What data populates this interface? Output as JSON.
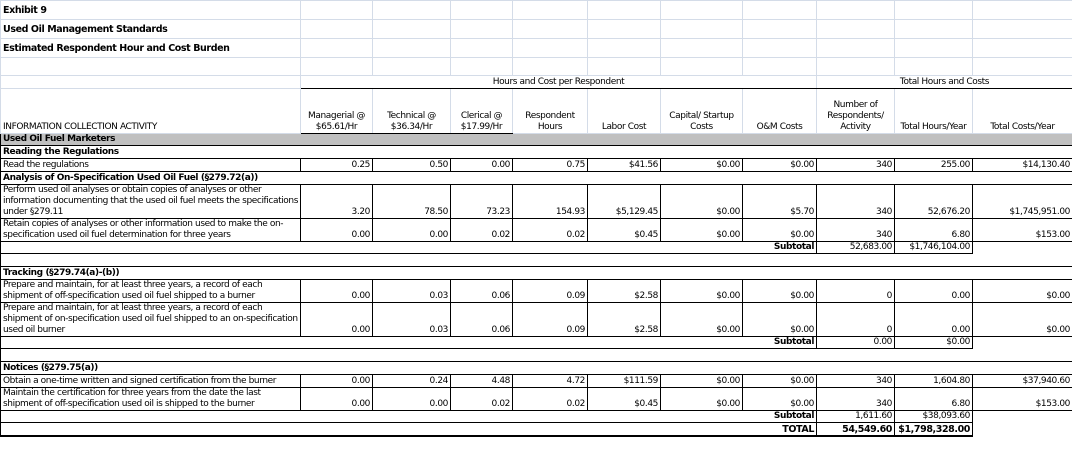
{
  "title_lines": [
    "Exhibit 9",
    "Used Oil Management Standards",
    "Estimated Respondent Hour and Cost Burden"
  ],
  "group_headers": {
    "per_respondent": "Hours and Cost per Respondent",
    "totals": "Total Hours and Costs"
  },
  "columns": [
    "INFORMATION COLLECTION ACTIVITY",
    "Managerial @ $65.61/Hr",
    "Technical @ $36.34/Hr",
    "Clerical @ $17.99/Hr",
    "Respondent Hours",
    "Labor Cost",
    "Capital/ Startup Costs",
    "O&M Costs",
    "Number of Respondents/ Activity",
    "Total Hours/Year",
    "Total Costs/Year"
  ],
  "category": "Used Oil Fuel Marketers",
  "sections": [
    {
      "title": "Reading the Regulations",
      "rows": [
        {
          "activity": "Read the regulations",
          "values": [
            "0.25",
            "0.50",
            "0.00",
            "0.75",
            "$41.56",
            "$0.00",
            "$0.00",
            "340",
            "255.00",
            "$14,130.40"
          ]
        }
      ]
    },
    {
      "title": "Analysis of On-Specification Used Oil Fuel (§279.72(a))",
      "rows": [
        {
          "activity": "Perform used oil analyses or obtain copies of analyses or other information documenting that the used oil fuel meets the specifications under §279.11",
          "values": [
            "3.20",
            "78.50",
            "73.23",
            "154.93",
            "$5,129.45",
            "$0.00",
            "$5.70",
            "340",
            "52,676.20",
            "$1,745,951.00"
          ]
        },
        {
          "activity": "Retain copies of analyses or other information used to make the on-specification used oil fuel determination for three years",
          "values": [
            "0.00",
            "0.00",
            "0.02",
            "0.02",
            "$0.45",
            "$0.00",
            "$0.00",
            "340",
            "6.80",
            "$153.00"
          ]
        }
      ],
      "subtotal": {
        "label": "Subtotal",
        "hours": "52,683.00",
        "costs": "$1,746,104.00"
      }
    },
    {
      "title": "Tracking (§279.74(a)-(b))",
      "rows": [
        {
          "activity": "Prepare and maintain, for at least three years, a record of each shipment of off-specification used oil fuel shipped to a burner",
          "values": [
            "0.00",
            "0.03",
            "0.06",
            "0.09",
            "$2.58",
            "$0.00",
            "$0.00",
            "0",
            "0.00",
            "$0.00"
          ]
        },
        {
          "activity": "Prepare and maintain, for at least three years, a record of each shipment of on-specification used oil fuel shipped to an on-specification used oil burner",
          "values": [
            "0.00",
            "0.03",
            "0.06",
            "0.09",
            "$2.58",
            "$0.00",
            "$0.00",
            "0",
            "0.00",
            "$0.00"
          ]
        }
      ],
      "subtotal": {
        "label": "Subtotal",
        "hours": "0.00",
        "costs": "$0.00"
      }
    },
    {
      "title": "Notices (§279.75(a))",
      "rows": [
        {
          "activity": "Obtain a one-time written and signed certification from the burner",
          "values": [
            "0.00",
            "0.24",
            "4.48",
            "4.72",
            "$111.59",
            "$0.00",
            "$0.00",
            "340",
            "1,604.80",
            "$37,940.60"
          ]
        },
        {
          "activity": "Maintain the certification for three years from the date the last shipment of off-specification used oil is shipped to the burner",
          "values": [
            "0.00",
            "0.00",
            "0.02",
            "0.02",
            "$0.45",
            "$0.00",
            "$0.00",
            "340",
            "6.80",
            "$153.00"
          ]
        }
      ],
      "subtotal": {
        "label": "Subtotal",
        "hours": "1,611.60",
        "costs": "$38,093.60"
      }
    }
  ],
  "total": {
    "label": "TOTAL",
    "hours": "54,549.60",
    "costs": "$1,798,328.00"
  }
}
